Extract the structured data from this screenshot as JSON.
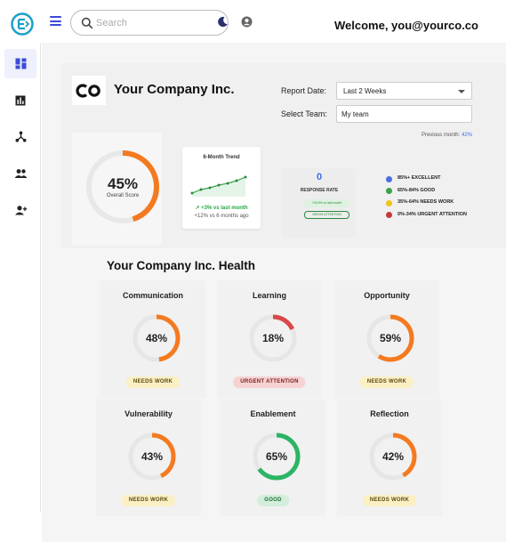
{
  "header": {
    "search_placeholder": "Search",
    "welcome": "Welcome, you@yourco.co"
  },
  "sidebar": {
    "items": [
      {
        "name": "dashboard",
        "icon": "dashboard-icon",
        "active": true
      },
      {
        "name": "reports",
        "icon": "bar-chart-icon",
        "active": false
      },
      {
        "name": "network",
        "icon": "network-icon",
        "active": false
      },
      {
        "name": "people",
        "icon": "people-icon",
        "active": false
      },
      {
        "name": "add-user",
        "icon": "person-add-icon",
        "active": false
      }
    ]
  },
  "company": {
    "name": "Your Company Inc.",
    "report_date_label": "Report Date:",
    "report_date_value": "Last 2 Weeks",
    "select_team_label": "Select Team:",
    "select_team_value": "My team",
    "previous_month_label": "Previous month:",
    "previous_month_value": "42%",
    "overall_value": "45%",
    "overall_label": "Overall Score",
    "overall_fraction": 0.45,
    "trend_title": "6-Month Trend",
    "trend_change": "+3% vs last month",
    "trend_sub": "+12% vs 6 months ago",
    "response_value": "0",
    "response_label": "RESPONSE RATE",
    "response_pill": "+00.5% vs last month",
    "response_pill2": "NEEDS ATTENTION"
  },
  "legend": [
    {
      "label": "85%+ EXCELLENT",
      "color": "#4a6ee0"
    },
    {
      "label": "65%-84% GOOD",
      "color": "#3ca24a"
    },
    {
      "label": "35%-64% NEEDS WORK",
      "color": "#f0c419"
    },
    {
      "label": "0%-34% URGENT ATTENTION",
      "color": "#c43a3a"
    }
  ],
  "health": {
    "title": "Your Company Inc. Health",
    "cards": [
      {
        "title": "Communication",
        "value": "48%",
        "fraction": 0.48,
        "color": "#f47a20",
        "badge": "NEEDS WORK",
        "badge_type": "needs"
      },
      {
        "title": "Learning",
        "value": "18%",
        "fraction": 0.18,
        "color": "#d94848",
        "badge": "URGENT ATTENTION",
        "badge_type": "urgent"
      },
      {
        "title": "Opportunity",
        "value": "59%",
        "fraction": 0.59,
        "color": "#f47a20",
        "badge": "NEEDS WORK",
        "badge_type": "needs"
      },
      {
        "title": "Vulnerability",
        "value": "43%",
        "fraction": 0.43,
        "color": "#f47a20",
        "badge": "NEEDS WORK",
        "badge_type": "needs"
      },
      {
        "title": "Enablement",
        "value": "65%",
        "fraction": 0.65,
        "color": "#2bb565",
        "badge": "GOOD",
        "badge_type": "good"
      },
      {
        "title": "Reflection",
        "value": "42%",
        "fraction": 0.42,
        "color": "#f47a20",
        "badge": "NEEDS WORK",
        "badge_type": "needs"
      }
    ]
  },
  "colors": {
    "accent": "#3b4bd8",
    "orange": "#f47a20",
    "green": "#2bb565"
  }
}
